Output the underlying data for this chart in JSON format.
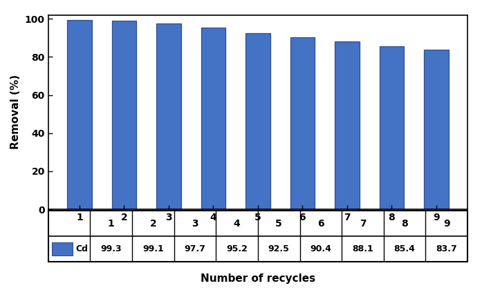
{
  "categories": [
    "1",
    "2",
    "3",
    "4",
    "5",
    "6",
    "7",
    "8",
    "9"
  ],
  "values": [
    99.3,
    99.1,
    97.7,
    95.2,
    92.5,
    90.4,
    88.1,
    85.4,
    83.7
  ],
  "bar_color": "#4472C4",
  "bar_edgecolor": "#2E4E8E",
  "ylabel": "Removal (%)",
  "xlabel": "Number of recycles",
  "ylim": [
    0,
    102
  ],
  "yticks": [
    0,
    20,
    40,
    60,
    80,
    100
  ],
  "legend_label": "Cd",
  "axis_fontsize": 11,
  "tick_fontsize": 10,
  "table_fontsize": 9,
  "background_color": "#ffffff",
  "table_values": [
    "99.3",
    "99.1",
    "97.7",
    "95.2",
    "92.5",
    "90.4",
    "88.1",
    "85.4",
    "83.7"
  ]
}
